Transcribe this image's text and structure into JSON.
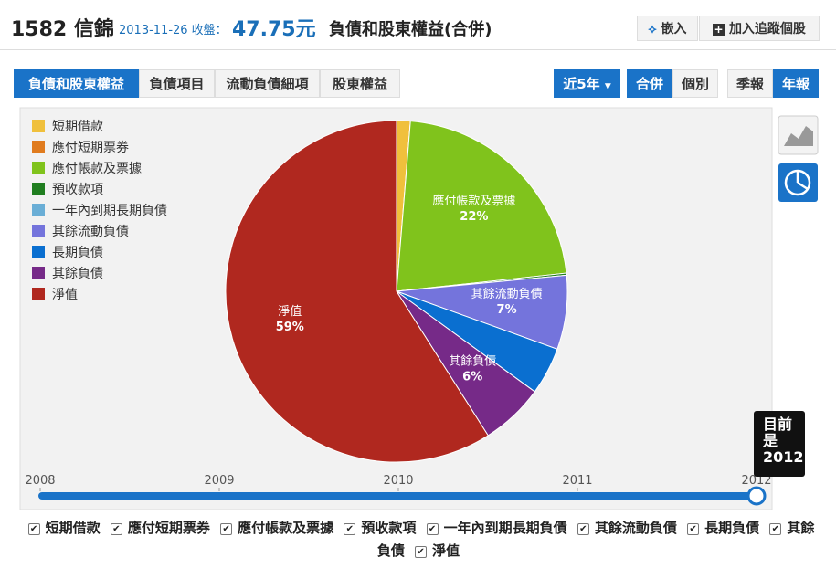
{
  "header": {
    "stock": "1582 信錦",
    "date_close": "2013-11-26 收盤：",
    "price": "47.75元",
    "page_title": "負債和股東權益(合併)",
    "buttons": [
      "嵌入",
      "加入追蹤個股"
    ]
  },
  "tabs": {
    "items": [
      "負債和股東權益",
      "負債項目",
      "流動負債細項",
      "股東權益"
    ],
    "active": 0
  },
  "controls": {
    "period": "近5年",
    "scope": [
      "合併",
      "個別"
    ],
    "scope_active": 0,
    "freq": [
      "季報",
      "年報"
    ],
    "freq_active": 1
  },
  "chart_data": {
    "type": "pie",
    "categories": [
      "短期借款",
      "應付短期票券",
      "應付帳款及票據",
      "預收款項",
      "一年內到期長期負債",
      "其餘流動負債",
      "長期負債",
      "其餘負債",
      "淨值"
    ],
    "values": [
      1.3,
      0,
      22,
      0.2,
      0,
      7,
      4.5,
      6,
      59
    ],
    "value_labels": [
      null,
      null,
      "22%",
      null,
      null,
      "7%",
      null,
      "6%",
      "59%"
    ],
    "colors": [
      "#f0c03c",
      "#e07b1e",
      "#80c31c",
      "#207e20",
      "#6aaed6",
      "#7474dc",
      "#0a6fd0",
      "#762a88",
      "#b0281f"
    ],
    "legend": "top-left"
  },
  "slider": {
    "years": [
      2008,
      2009,
      2010,
      2011,
      2012
    ],
    "current_label": "目前是",
    "current": 2012
  }
}
